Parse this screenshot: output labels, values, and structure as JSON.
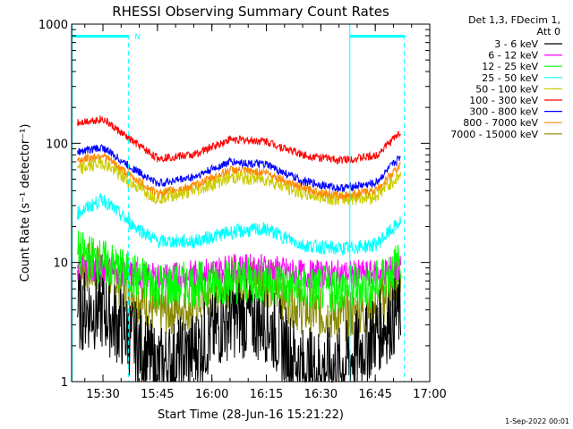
{
  "chart_data": {
    "type": "line",
    "title": "RHESSI Observing Summary Count Rates",
    "xlabel": "Start Time (28-Jun-16 15:21:22)",
    "ylabel": "Count Rate (s⁻¹ detector⁻¹)",
    "yscale": "log",
    "ylim": [
      1,
      1000
    ],
    "xlim": [
      "15:21:22",
      "17:00:00"
    ],
    "x_ticks": [
      "15:30",
      "15:45",
      "16:00",
      "16:15",
      "16:30",
      "16:45",
      "17:00"
    ],
    "y_ticks": [
      "1",
      "10",
      "100",
      "1000"
    ],
    "legend_header": [
      "Det 1,3, FDecim 1,",
      "Att 0"
    ],
    "legend_position": "right",
    "grid": false,
    "footer": "1-Sep-2022 00:01",
    "annotations": [
      {
        "text": "N",
        "at": "15:37"
      }
    ],
    "series": [
      {
        "name": "3 - 6 keV",
        "color": "#000000",
        "x": [
          "15:23",
          "15:30",
          "15:37",
          "15:45",
          "15:55",
          "16:05",
          "16:15",
          "16:25",
          "16:35",
          "16:45",
          "16:52"
        ],
        "values": [
          4,
          4,
          2.5,
          1.3,
          1.8,
          3.5,
          3.2,
          1.3,
          1.3,
          2.5,
          4
        ]
      },
      {
        "name": "6 - 12 keV",
        "color": "#ff00ff",
        "x": [
          "15:23",
          "15:30",
          "15:37",
          "15:45",
          "15:55",
          "16:05",
          "16:15",
          "16:25",
          "16:35",
          "16:45",
          "16:52"
        ],
        "values": [
          9,
          9,
          8,
          7.5,
          8,
          9,
          9,
          8,
          8,
          8,
          9
        ]
      },
      {
        "name": "12 - 25 keV",
        "color": "#00ff00",
        "x": [
          "15:23",
          "15:30",
          "15:37",
          "15:45",
          "15:55",
          "16:05",
          "16:15",
          "16:25",
          "16:35",
          "16:45",
          "16:52"
        ],
        "values": [
          12,
          10,
          8,
          6.5,
          6.5,
          7,
          7,
          6,
          6,
          6.5,
          10
        ]
      },
      {
        "name": "25 - 50 keV",
        "color": "#00ffff",
        "x": [
          "15:23",
          "15:30",
          "15:37",
          "15:45",
          "15:55",
          "16:05",
          "16:15",
          "16:25",
          "16:35",
          "16:45",
          "16:52"
        ],
        "values": [
          26,
          34,
          22,
          15,
          15,
          18,
          19,
          14,
          13,
          14,
          22
        ]
      },
      {
        "name": "50 - 100 keV",
        "color": "#cccc00",
        "x": [
          "15:23",
          "15:30",
          "15:37",
          "15:45",
          "15:55",
          "16:05",
          "16:15",
          "16:25",
          "16:35",
          "16:45",
          "16:52"
        ],
        "values": [
          60,
          70,
          48,
          35,
          40,
          52,
          50,
          38,
          34,
          36,
          55
        ]
      },
      {
        "name": "100 - 300 keV",
        "color": "#ff0000",
        "x": [
          "15:23",
          "15:30",
          "15:37",
          "15:45",
          "15:55",
          "16:05",
          "16:15",
          "16:25",
          "16:35",
          "16:45",
          "16:52"
        ],
        "values": [
          150,
          160,
          110,
          75,
          80,
          108,
          104,
          80,
          72,
          78,
          125
        ]
      },
      {
        "name": "300 - 800 keV",
        "color": "#0000ff",
        "x": [
          "15:23",
          "15:30",
          "15:37",
          "15:45",
          "15:55",
          "16:05",
          "16:15",
          "16:25",
          "16:35",
          "16:45",
          "16:52"
        ],
        "values": [
          85,
          92,
          65,
          46,
          52,
          70,
          66,
          48,
          42,
          46,
          78
        ]
      },
      {
        "name": "800 - 7000 keV",
        "color": "#ff8800",
        "x": [
          "15:23",
          "15:30",
          "15:37",
          "15:45",
          "15:55",
          "16:05",
          "16:15",
          "16:25",
          "16:35",
          "16:45",
          "16:52"
        ],
        "values": [
          72,
          80,
          55,
          38,
          44,
          60,
          57,
          42,
          36,
          40,
          66
        ]
      },
      {
        "name": "7000 - 15000 keV",
        "color": "#888800",
        "x": [
          "15:23",
          "15:30",
          "15:37",
          "15:45",
          "15:55",
          "16:05",
          "16:15",
          "16:25",
          "16:35",
          "16:45",
          "16:52"
        ],
        "values": [
          9,
          9,
          6,
          3.8,
          4.5,
          7,
          7,
          4,
          3.5,
          4,
          8
        ]
      }
    ]
  }
}
